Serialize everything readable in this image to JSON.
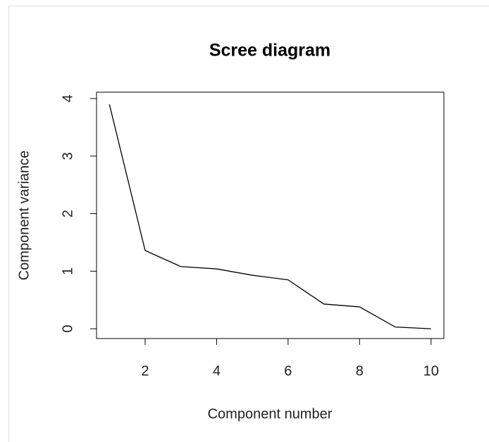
{
  "chart_data": {
    "type": "line",
    "title": "Scree diagram",
    "x_label": "Component number",
    "y_label": "Component variance",
    "x": [
      1,
      2,
      3,
      4,
      5,
      6,
      7,
      8,
      9,
      10
    ],
    "values": [
      3.9,
      1.36,
      1.08,
      1.04,
      0.93,
      0.85,
      0.43,
      0.38,
      0.03,
      0.0
    ],
    "color": "#000000",
    "xlim": [
      0.64,
      10.36
    ],
    "xticks": [
      2,
      4,
      6,
      8,
      10
    ],
    "ylim": [
      -0.17,
      4.11
    ],
    "yticks": [
      0,
      1,
      2,
      3,
      4
    ]
  }
}
